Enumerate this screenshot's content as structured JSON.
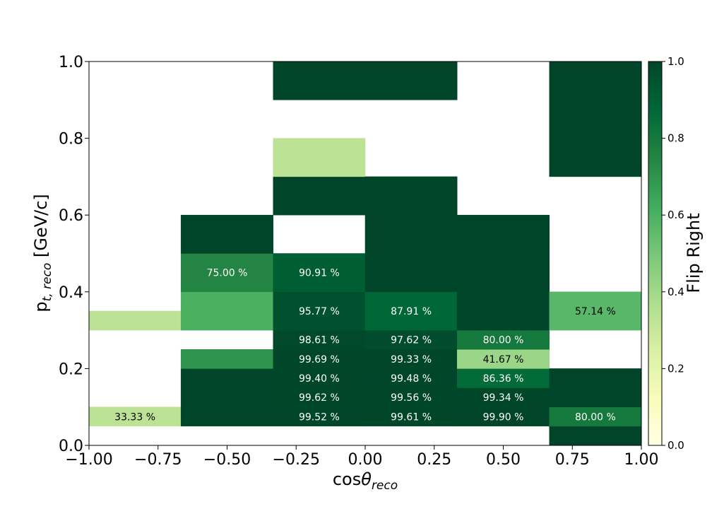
{
  "chart_data": {
    "type": "heatmap",
    "xlabel_main": "cos",
    "xlabel_theta": "θ",
    "xlabel_sub": "reco",
    "ylabel_main": "p",
    "ylabel_sub": "t, reco",
    "ylabel_unit": " [GeV/c]",
    "colorbar_label": "Flip Right",
    "xlim": [
      -1.0,
      1.0
    ],
    "ylim": [
      0.0,
      1.0
    ],
    "x_ticks": [
      -1.0,
      -0.75,
      -0.5,
      -0.25,
      0.0,
      0.25,
      0.5,
      0.75,
      1.0
    ],
    "x_tick_labels": [
      "−1.00",
      "−0.75",
      "−0.50",
      "−0.25",
      "0.00",
      "0.25",
      "0.50",
      "0.75",
      "1.00"
    ],
    "y_ticks": [
      0.0,
      0.2,
      0.4,
      0.6,
      0.8,
      1.0
    ],
    "y_tick_labels": [
      "0.0",
      "0.2",
      "0.4",
      "0.6",
      "0.8",
      "1.0"
    ],
    "colorbar_ticks": [
      0.0,
      0.2,
      0.4,
      0.6,
      0.8,
      1.0
    ],
    "colorbar_tick_labels": [
      "0.0",
      "0.2",
      "0.4",
      "0.6",
      "0.8",
      "1.0"
    ],
    "colormap": "YlGn",
    "colormap_stops": [
      "#ffffe5",
      "#f7fcb9",
      "#d9f0a3",
      "#addd8e",
      "#78c679",
      "#41ab5d",
      "#238443",
      "#006837",
      "#004529"
    ],
    "cells": [
      {
        "x": [
          -1.0,
          -0.667
        ],
        "y": [
          0.05,
          0.1
        ],
        "value": 0.3333,
        "label": "33.33 %"
      },
      {
        "x": [
          -1.0,
          -0.667
        ],
        "y": [
          0.3,
          0.35
        ],
        "value": 0.3333,
        "label": ""
      },
      {
        "x": [
          -0.667,
          -0.333
        ],
        "y": [
          0.05,
          0.1
        ],
        "value": 1.0,
        "label": ""
      },
      {
        "x": [
          -0.667,
          -0.333
        ],
        "y": [
          0.1,
          0.15
        ],
        "value": 1.0,
        "label": ""
      },
      {
        "x": [
          -0.667,
          -0.333
        ],
        "y": [
          0.15,
          0.2
        ],
        "value": 1.0,
        "label": ""
      },
      {
        "x": [
          -0.667,
          -0.333
        ],
        "y": [
          0.2,
          0.25
        ],
        "value": 0.7,
        "label": ""
      },
      {
        "x": [
          -0.667,
          -0.333
        ],
        "y": [
          0.3,
          0.4
        ],
        "value": 0.6,
        "label": ""
      },
      {
        "x": [
          -0.667,
          -0.333
        ],
        "y": [
          0.4,
          0.5
        ],
        "value": 0.75,
        "label": "75.00 %"
      },
      {
        "x": [
          -0.667,
          -0.333
        ],
        "y": [
          0.5,
          0.6
        ],
        "value": 1.0,
        "label": ""
      },
      {
        "x": [
          -0.333,
          0.0
        ],
        "y": [
          0.05,
          0.1
        ],
        "value": 0.9952,
        "label": "99.52 %"
      },
      {
        "x": [
          -0.333,
          0.0
        ],
        "y": [
          0.1,
          0.15
        ],
        "value": 0.9962,
        "label": "99.62 %"
      },
      {
        "x": [
          -0.333,
          0.0
        ],
        "y": [
          0.15,
          0.2
        ],
        "value": 0.994,
        "label": "99.40 %"
      },
      {
        "x": [
          -0.333,
          0.0
        ],
        "y": [
          0.2,
          0.25
        ],
        "value": 0.9969,
        "label": "99.69 %"
      },
      {
        "x": [
          -0.333,
          0.0
        ],
        "y": [
          0.25,
          0.3
        ],
        "value": 0.9861,
        "label": "98.61 %"
      },
      {
        "x": [
          -0.333,
          0.0
        ],
        "y": [
          0.3,
          0.4
        ],
        "value": 0.9577,
        "label": "95.77 %"
      },
      {
        "x": [
          -0.333,
          0.0
        ],
        "y": [
          0.4,
          0.5
        ],
        "value": 0.9091,
        "label": "90.91 %"
      },
      {
        "x": [
          -0.333,
          0.0
        ],
        "y": [
          0.6,
          0.7
        ],
        "value": 1.0,
        "label": ""
      },
      {
        "x": [
          -0.333,
          0.0
        ],
        "y": [
          0.7,
          0.8
        ],
        "value": 0.3333,
        "label": ""
      },
      {
        "x": [
          -0.333,
          0.0
        ],
        "y": [
          0.9,
          1.0
        ],
        "value": 1.0,
        "label": ""
      },
      {
        "x": [
          0.0,
          0.333
        ],
        "y": [
          0.05,
          0.1
        ],
        "value": 0.9961,
        "label": "99.61 %"
      },
      {
        "x": [
          0.0,
          0.333
        ],
        "y": [
          0.1,
          0.15
        ],
        "value": 0.9956,
        "label": "99.56 %"
      },
      {
        "x": [
          0.0,
          0.333
        ],
        "y": [
          0.15,
          0.2
        ],
        "value": 0.9948,
        "label": "99.48 %"
      },
      {
        "x": [
          0.0,
          0.333
        ],
        "y": [
          0.2,
          0.25
        ],
        "value": 0.9933,
        "label": "99.33 %"
      },
      {
        "x": [
          0.0,
          0.333
        ],
        "y": [
          0.25,
          0.3
        ],
        "value": 0.9762,
        "label": "97.62 %"
      },
      {
        "x": [
          0.0,
          0.333
        ],
        "y": [
          0.3,
          0.4
        ],
        "value": 0.8791,
        "label": "87.91 %"
      },
      {
        "x": [
          0.0,
          0.333
        ],
        "y": [
          0.4,
          0.5
        ],
        "value": 1.0,
        "label": ""
      },
      {
        "x": [
          0.0,
          0.333
        ],
        "y": [
          0.5,
          0.6
        ],
        "value": 1.0,
        "label": ""
      },
      {
        "x": [
          0.0,
          0.333
        ],
        "y": [
          0.6,
          0.7
        ],
        "value": 1.0,
        "label": ""
      },
      {
        "x": [
          0.0,
          0.333
        ],
        "y": [
          0.9,
          1.0
        ],
        "value": 1.0,
        "label": ""
      },
      {
        "x": [
          0.333,
          0.667
        ],
        "y": [
          0.05,
          0.1
        ],
        "value": 0.999,
        "label": "99.90 %"
      },
      {
        "x": [
          0.333,
          0.667
        ],
        "y": [
          0.1,
          0.15
        ],
        "value": 0.9934,
        "label": "99.34 %"
      },
      {
        "x": [
          0.333,
          0.667
        ],
        "y": [
          0.15,
          0.2
        ],
        "value": 0.8636,
        "label": "86.36 %"
      },
      {
        "x": [
          0.333,
          0.667
        ],
        "y": [
          0.2,
          0.25
        ],
        "value": 0.4167,
        "label": "41.67 %"
      },
      {
        "x": [
          0.333,
          0.667
        ],
        "y": [
          0.25,
          0.3
        ],
        "value": 0.8,
        "label": "80.00 %"
      },
      {
        "x": [
          0.333,
          0.667
        ],
        "y": [
          0.3,
          0.4
        ],
        "value": 1.0,
        "label": ""
      },
      {
        "x": [
          0.333,
          0.667
        ],
        "y": [
          0.4,
          0.5
        ],
        "value": 1.0,
        "label": ""
      },
      {
        "x": [
          0.333,
          0.667
        ],
        "y": [
          0.5,
          0.6
        ],
        "value": 1.0,
        "label": ""
      },
      {
        "x": [
          0.667,
          1.0
        ],
        "y": [
          0.0,
          0.05
        ],
        "value": 1.0,
        "label": ""
      },
      {
        "x": [
          0.667,
          1.0
        ],
        "y": [
          0.05,
          0.1
        ],
        "value": 0.8,
        "label": "80.00 %"
      },
      {
        "x": [
          0.667,
          1.0
        ],
        "y": [
          0.1,
          0.15
        ],
        "value": 1.0,
        "label": ""
      },
      {
        "x": [
          0.667,
          1.0
        ],
        "y": [
          0.15,
          0.2
        ],
        "value": 1.0,
        "label": ""
      },
      {
        "x": [
          0.667,
          1.0
        ],
        "y": [
          0.3,
          0.4
        ],
        "value": 0.5714,
        "label": "57.14 %"
      },
      {
        "x": [
          0.667,
          1.0
        ],
        "y": [
          0.7,
          1.0
        ],
        "value": 1.0,
        "label": ""
      }
    ]
  }
}
